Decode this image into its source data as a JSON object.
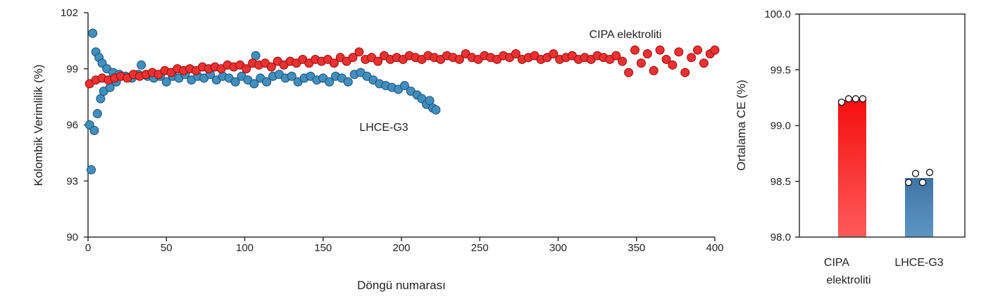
{
  "chart_data": [
    {
      "type": "scatter",
      "xlabel": "Döngü numarası",
      "ylabel": "Kolombik Verimlilik (%)",
      "xlim": [
        0,
        400
      ],
      "ylim": [
        90,
        102
      ],
      "xticks": [
        "0",
        "50",
        "100",
        "150",
        "200",
        "250",
        "300",
        "350",
        "400"
      ],
      "yticks": [
        "90",
        "93",
        "96",
        "99",
        "102"
      ],
      "grid": false,
      "annotations": [
        "CIPA elektroliti",
        "LHCE-G3"
      ],
      "series": [
        {
          "name": "LHCE-G3",
          "color": "#3f8fc0",
          "points": [
            [
              1,
              96.0
            ],
            [
              2,
              93.6
            ],
            [
              3,
              100.9
            ],
            [
              4,
              95.7
            ],
            [
              5,
              99.9
            ],
            [
              6,
              96.6
            ],
            [
              7,
              99.6
            ],
            [
              8,
              97.4
            ],
            [
              9,
              99.3
            ],
            [
              10,
              97.8
            ],
            [
              12,
              99.0
            ],
            [
              14,
              98.0
            ],
            [
              16,
              98.8
            ],
            [
              18,
              98.3
            ],
            [
              20,
              98.7
            ],
            [
              24,
              98.6
            ],
            [
              28,
              98.5
            ],
            [
              32,
              98.7
            ],
            [
              34,
              99.2
            ],
            [
              38,
              98.6
            ],
            [
              42,
              98.5
            ],
            [
              46,
              98.6
            ],
            [
              50,
              98.3
            ],
            [
              54,
              98.6
            ],
            [
              58,
              98.5
            ],
            [
              62,
              98.7
            ],
            [
              66,
              98.4
            ],
            [
              70,
              98.6
            ],
            [
              74,
              98.5
            ],
            [
              78,
              98.7
            ],
            [
              82,
              98.4
            ],
            [
              86,
              98.6
            ],
            [
              90,
              98.5
            ],
            [
              94,
              98.3
            ],
            [
              98,
              98.6
            ],
            [
              102,
              98.4
            ],
            [
              106,
              98.2
            ],
            [
              107,
              99.7
            ],
            [
              110,
              98.5
            ],
            [
              114,
              98.3
            ],
            [
              118,
              98.6
            ],
            [
              122,
              98.7
            ],
            [
              126,
              98.5
            ],
            [
              130,
              98.6
            ],
            [
              134,
              98.3
            ],
            [
              138,
              98.5
            ],
            [
              142,
              98.6
            ],
            [
              146,
              98.4
            ],
            [
              150,
              98.5
            ],
            [
              154,
              98.3
            ],
            [
              158,
              98.6
            ],
            [
              162,
              98.5
            ],
            [
              166,
              98.3
            ],
            [
              170,
              98.7
            ],
            [
              174,
              98.8
            ],
            [
              178,
              98.6
            ],
            [
              182,
              98.4
            ],
            [
              186,
              98.2
            ],
            [
              190,
              98.1
            ],
            [
              194,
              98.0
            ],
            [
              198,
              97.9
            ],
            [
              202,
              98.1
            ],
            [
              206,
              97.8
            ],
            [
              210,
              97.6
            ],
            [
              213,
              97.4
            ],
            [
              216,
              97.1
            ],
            [
              218,
              97.3
            ],
            [
              220,
              96.9
            ],
            [
              222,
              96.8
            ]
          ]
        },
        {
          "name": "CIPA elektroliti",
          "color": "#f03030",
          "points": [
            [
              1,
              98.2
            ],
            [
              5,
              98.4
            ],
            [
              9,
              98.5
            ],
            [
              13,
              98.4
            ],
            [
              17,
              98.5
            ],
            [
              21,
              98.6
            ],
            [
              25,
              98.5
            ],
            [
              29,
              98.7
            ],
            [
              33,
              98.6
            ],
            [
              37,
              98.7
            ],
            [
              41,
              98.8
            ],
            [
              45,
              98.7
            ],
            [
              49,
              98.9
            ],
            [
              53,
              98.8
            ],
            [
              57,
              99.0
            ],
            [
              61,
              98.9
            ],
            [
              65,
              99.0
            ],
            [
              69,
              98.9
            ],
            [
              73,
              99.1
            ],
            [
              77,
              99.0
            ],
            [
              81,
              99.1
            ],
            [
              85,
              99.0
            ],
            [
              89,
              99.2
            ],
            [
              93,
              99.1
            ],
            [
              97,
              99.2
            ],
            [
              101,
              99.0
            ],
            [
              105,
              99.3
            ],
            [
              109,
              99.2
            ],
            [
              113,
              99.3
            ],
            [
              117,
              99.1
            ],
            [
              121,
              99.4
            ],
            [
              125,
              99.2
            ],
            [
              129,
              99.4
            ],
            [
              133,
              99.3
            ],
            [
              137,
              99.5
            ],
            [
              141,
              99.3
            ],
            [
              145,
              99.5
            ],
            [
              149,
              99.4
            ],
            [
              153,
              99.5
            ],
            [
              157,
              99.3
            ],
            [
              161,
              99.6
            ],
            [
              165,
              99.4
            ],
            [
              169,
              99.6
            ],
            [
              173,
              99.9
            ],
            [
              177,
              99.5
            ],
            [
              181,
              99.6
            ],
            [
              185,
              99.4
            ],
            [
              189,
              99.7
            ],
            [
              193,
              99.5
            ],
            [
              197,
              99.6
            ],
            [
              201,
              99.5
            ],
            [
              205,
              99.7
            ],
            [
              209,
              99.6
            ],
            [
              213,
              99.5
            ],
            [
              217,
              99.7
            ],
            [
              221,
              99.6
            ],
            [
              225,
              99.5
            ],
            [
              229,
              99.7
            ],
            [
              233,
              99.6
            ],
            [
              237,
              99.5
            ],
            [
              241,
              99.8
            ],
            [
              245,
              99.6
            ],
            [
              249,
              99.5
            ],
            [
              253,
              99.7
            ],
            [
              257,
              99.6
            ],
            [
              261,
              99.5
            ],
            [
              265,
              99.7
            ],
            [
              269,
              99.6
            ],
            [
              273,
              99.8
            ],
            [
              277,
              99.5
            ],
            [
              281,
              99.6
            ],
            [
              285,
              99.7
            ],
            [
              289,
              99.5
            ],
            [
              293,
              99.6
            ],
            [
              297,
              99.8
            ],
            [
              301,
              99.5
            ],
            [
              305,
              99.6
            ],
            [
              309,
              99.7
            ],
            [
              313,
              99.5
            ],
            [
              317,
              99.6
            ],
            [
              321,
              99.5
            ],
            [
              325,
              99.7
            ],
            [
              329,
              99.6
            ],
            [
              333,
              99.5
            ],
            [
              337,
              99.7
            ],
            [
              341,
              99.4
            ],
            [
              345,
              98.8
            ],
            [
              349,
              100.0
            ],
            [
              353,
              99.3
            ],
            [
              357,
              99.8
            ],
            [
              361,
              98.9
            ],
            [
              365,
              100.0
            ],
            [
              369,
              99.5
            ],
            [
              373,
              99.2
            ],
            [
              377,
              99.9
            ],
            [
              381,
              98.8
            ],
            [
              385,
              99.6
            ],
            [
              389,
              100.0
            ],
            [
              393,
              99.3
            ],
            [
              397,
              99.8
            ],
            [
              400,
              100.0
            ]
          ]
        }
      ]
    },
    {
      "type": "bar",
      "ylabel": "Ortalama CE (%)",
      "ylim": [
        98.0,
        100.0
      ],
      "yticks": [
        "98.0",
        "98.5",
        "99.0",
        "99.5",
        "100.0"
      ],
      "grid": false,
      "categories": [
        [
          "CIPA",
          "elektroliti"
        ],
        [
          "LHCE-G3"
        ]
      ],
      "values": [
        99.23,
        98.53
      ],
      "colors": [
        "#f52020",
        "#4a82b0"
      ],
      "replicates": [
        [
          99.21,
          99.24,
          99.24,
          99.24
        ],
        [
          98.49,
          98.57,
          98.49,
          98.58
        ]
      ]
    }
  ]
}
